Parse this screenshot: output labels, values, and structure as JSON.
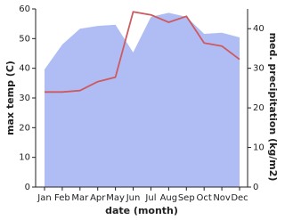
{
  "chart_data": {
    "type": "line",
    "categories": [
      "Jan",
      "Feb",
      "Mar",
      "Apr",
      "May",
      "Jun",
      "Jul",
      "Aug",
      "Sep",
      "Oct",
      "Nov",
      "Dec"
    ],
    "x_label": "date (month)",
    "y_label": "max temp (C)",
    "y2_label": "med. precipitation (kg/m2)",
    "ylim": [
      0,
      60
    ],
    "yticks": [
      0,
      10,
      20,
      30,
      40,
      50,
      60
    ],
    "y2lim": [
      0,
      45
    ],
    "y2ticks": [
      0,
      10,
      20,
      30,
      40
    ],
    "series": [
      {
        "name": "med. precipitation",
        "type": "area",
        "axis": "y2",
        "color": "#b0bdf4",
        "values": [
          29.7,
          36,
          40,
          40.7,
          41,
          34,
          43,
          44,
          43,
          38.7,
          39,
          37.8
        ]
      },
      {
        "name": "max temp",
        "type": "line",
        "color": "#cc5a5e",
        "values": [
          32,
          32,
          32.5,
          35.5,
          37,
          59,
          58,
          55.5,
          57.5,
          48.5,
          47.5,
          43
        ]
      }
    ]
  }
}
